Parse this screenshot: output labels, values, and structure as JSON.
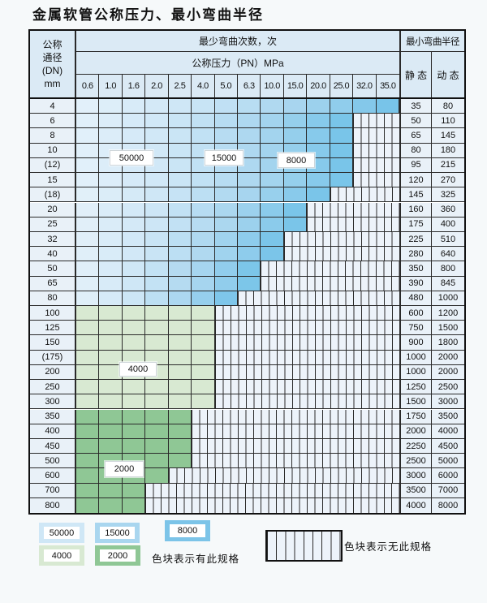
{
  "title": "金属软管公称压力、最小弯曲半径",
  "header": {
    "dn_lines": [
      "公称",
      "通径",
      "(DN)",
      "mm"
    ],
    "cycles_label": "最少弯曲次数，次",
    "pressure_label": "公称压力（PN）MPa",
    "pressures": [
      "0.6",
      "1.0",
      "1.6",
      "2.0",
      "2.5",
      "4.0",
      "5.0",
      "6.3",
      "10.0",
      "15.0",
      "20.0",
      "25.0",
      "32.0",
      "35.0"
    ],
    "radius_label": "最小弯曲半径",
    "static_label": "静 态",
    "dynamic_label": "动 态"
  },
  "rows": [
    {
      "dn": "4",
      "colored_cols": 14,
      "shade": "blue",
      "static": "35",
      "dynamic": "80"
    },
    {
      "dn": "6",
      "colored_cols": 12,
      "shade": "blue",
      "static": "50",
      "dynamic": "110"
    },
    {
      "dn": "8",
      "colored_cols": 12,
      "shade": "blue",
      "static": "65",
      "dynamic": "145"
    },
    {
      "dn": "10",
      "colored_cols": 12,
      "shade": "blue",
      "static": "80",
      "dynamic": "180"
    },
    {
      "dn": "(12)",
      "colored_cols": 12,
      "shade": "blue",
      "static": "95",
      "dynamic": "215"
    },
    {
      "dn": "15",
      "colored_cols": 12,
      "shade": "blue",
      "static": "120",
      "dynamic": "270"
    },
    {
      "dn": "(18)",
      "colored_cols": 11,
      "shade": "blue",
      "static": "145",
      "dynamic": "325"
    },
    {
      "dn": "20",
      "colored_cols": 10,
      "shade": "blue",
      "static": "160",
      "dynamic": "360"
    },
    {
      "dn": "25",
      "colored_cols": 10,
      "shade": "blue",
      "static": "175",
      "dynamic": "400"
    },
    {
      "dn": "32",
      "colored_cols": 9,
      "shade": "blue",
      "static": "225",
      "dynamic": "510"
    },
    {
      "dn": "40",
      "colored_cols": 9,
      "shade": "blue",
      "static": "280",
      "dynamic": "640"
    },
    {
      "dn": "50",
      "colored_cols": 8,
      "shade": "blue",
      "static": "350",
      "dynamic": "800"
    },
    {
      "dn": "65",
      "colored_cols": 8,
      "shade": "blue",
      "static": "390",
      "dynamic": "845"
    },
    {
      "dn": "80",
      "colored_cols": 7,
      "shade": "blue",
      "static": "480",
      "dynamic": "1000"
    },
    {
      "dn": "100",
      "colored_cols": 6,
      "shade": "green-light",
      "static": "600",
      "dynamic": "1200"
    },
    {
      "dn": "125",
      "colored_cols": 6,
      "shade": "green-light",
      "static": "750",
      "dynamic": "1500"
    },
    {
      "dn": "150",
      "colored_cols": 6,
      "shade": "green-light",
      "static": "900",
      "dynamic": "1800"
    },
    {
      "dn": "(175)",
      "colored_cols": 6,
      "shade": "green-light",
      "static": "1000",
      "dynamic": "2000"
    },
    {
      "dn": "200",
      "colored_cols": 6,
      "shade": "green-light",
      "static": "1000",
      "dynamic": "2000"
    },
    {
      "dn": "250",
      "colored_cols": 6,
      "shade": "green-light",
      "static": "1250",
      "dynamic": "2500"
    },
    {
      "dn": "300",
      "colored_cols": 6,
      "shade": "green-light",
      "static": "1500",
      "dynamic": "3000"
    },
    {
      "dn": "350",
      "colored_cols": 5,
      "shade": "green-mid",
      "static": "1750",
      "dynamic": "3500"
    },
    {
      "dn": "400",
      "colored_cols": 5,
      "shade": "green-mid",
      "static": "2000",
      "dynamic": "4000"
    },
    {
      "dn": "450",
      "colored_cols": 5,
      "shade": "green-mid",
      "static": "2250",
      "dynamic": "4500"
    },
    {
      "dn": "500",
      "colored_cols": 5,
      "shade": "green-mid",
      "static": "2500",
      "dynamic": "5000"
    },
    {
      "dn": "600",
      "colored_cols": 4,
      "shade": "green-mid",
      "static": "3000",
      "dynamic": "6000"
    },
    {
      "dn": "700",
      "colored_cols": 3,
      "shade": "green-mid",
      "static": "3500",
      "dynamic": "7000"
    },
    {
      "dn": "800",
      "colored_cols": 3,
      "shade": "green-mid",
      "static": "4000",
      "dynamic": "8000"
    }
  ],
  "table_labels": {
    "cycles_50000": "50000",
    "cycles_15000": "15000",
    "cycles_8000": "8000",
    "cycles_4000": "4000",
    "cycles_2000": "2000"
  },
  "legend": {
    "v50000": "50000",
    "v15000": "15000",
    "v8000": "8000",
    "v4000": "4000",
    "v2000": "2000",
    "has_spec": "色块表示有此规格",
    "no_spec": "色块表示无此规格"
  },
  "colors": {
    "blue_scale": [
      "#e4f1fa",
      "#cde6f6",
      "#a9d6ef",
      "#72c2e8"
    ],
    "legend_blue_light": "#cfe7f6",
    "legend_blue_mid": "#a9d6ef",
    "legend_blue_dark": "#7cc4e8",
    "green_light": "#d8e9d2",
    "green_mid": "#8fc795",
    "cell_bg": "#e9f1f8",
    "header_bg": "#dbeaf5",
    "hatch_bg": "#edf3fa",
    "grid": "#2a2a2a"
  }
}
